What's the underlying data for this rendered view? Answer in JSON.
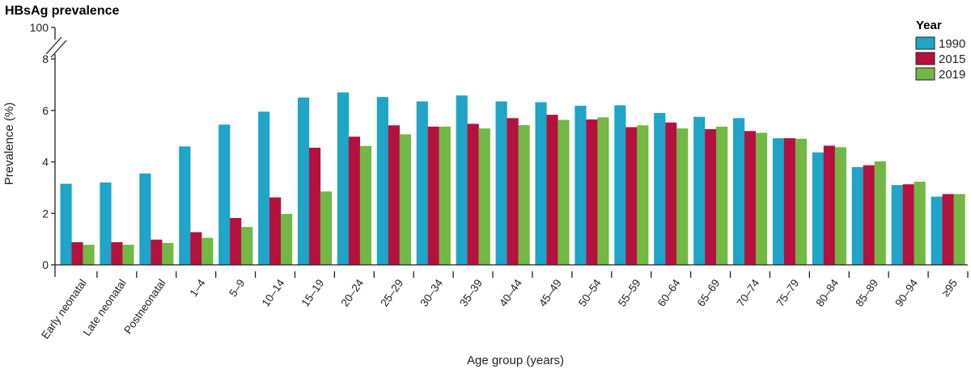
{
  "chart_data": {
    "type": "bar",
    "title": "HBsAg prevalence",
    "xlabel": "Age group (years)",
    "ylabel": "Prevalence (%)",
    "ylim": [
      0,
      8
    ],
    "yticks": [
      "0",
      "2",
      "4",
      "6",
      "8"
    ],
    "ybreak_tick": "100",
    "axis_break": true,
    "grid": false,
    "legend_title": "Year",
    "legend_position": "top-right",
    "categories": [
      "Early neonatal",
      "Late neonatal",
      "Postneonatal",
      "1–4",
      "5–9",
      "10–14",
      "15–19",
      "20–24",
      "25–29",
      "30–34",
      "35–39",
      "40–44",
      "45–49",
      "50–54",
      "55–59",
      "60–64",
      "65–69",
      "70–74",
      "75–79",
      "80–84",
      "85–89",
      "90–94",
      "≥95"
    ],
    "series": [
      {
        "name": "1990",
        "color": "#1ea5c8",
        "values": [
          3.15,
          3.2,
          3.55,
          4.6,
          5.45,
          5.95,
          6.5,
          6.7,
          6.52,
          6.35,
          6.58,
          6.35,
          6.32,
          6.18,
          6.2,
          5.9,
          5.75,
          5.7,
          4.92,
          4.37,
          3.8,
          3.1,
          2.65
        ]
      },
      {
        "name": "2015",
        "color": "#b5113f",
        "values": [
          0.88,
          0.88,
          0.98,
          1.27,
          1.82,
          2.62,
          4.55,
          4.98,
          5.42,
          5.37,
          5.48,
          5.7,
          5.83,
          5.65,
          5.35,
          5.53,
          5.27,
          5.2,
          4.92,
          4.63,
          3.87,
          3.13,
          2.75
        ]
      },
      {
        "name": "2019",
        "color": "#72b844",
        "values": [
          0.78,
          0.78,
          0.85,
          1.05,
          1.47,
          1.98,
          2.85,
          4.62,
          5.07,
          5.37,
          5.3,
          5.43,
          5.63,
          5.73,
          5.42,
          5.3,
          5.37,
          5.13,
          4.9,
          4.57,
          4.02,
          3.23,
          2.75
        ]
      }
    ]
  }
}
